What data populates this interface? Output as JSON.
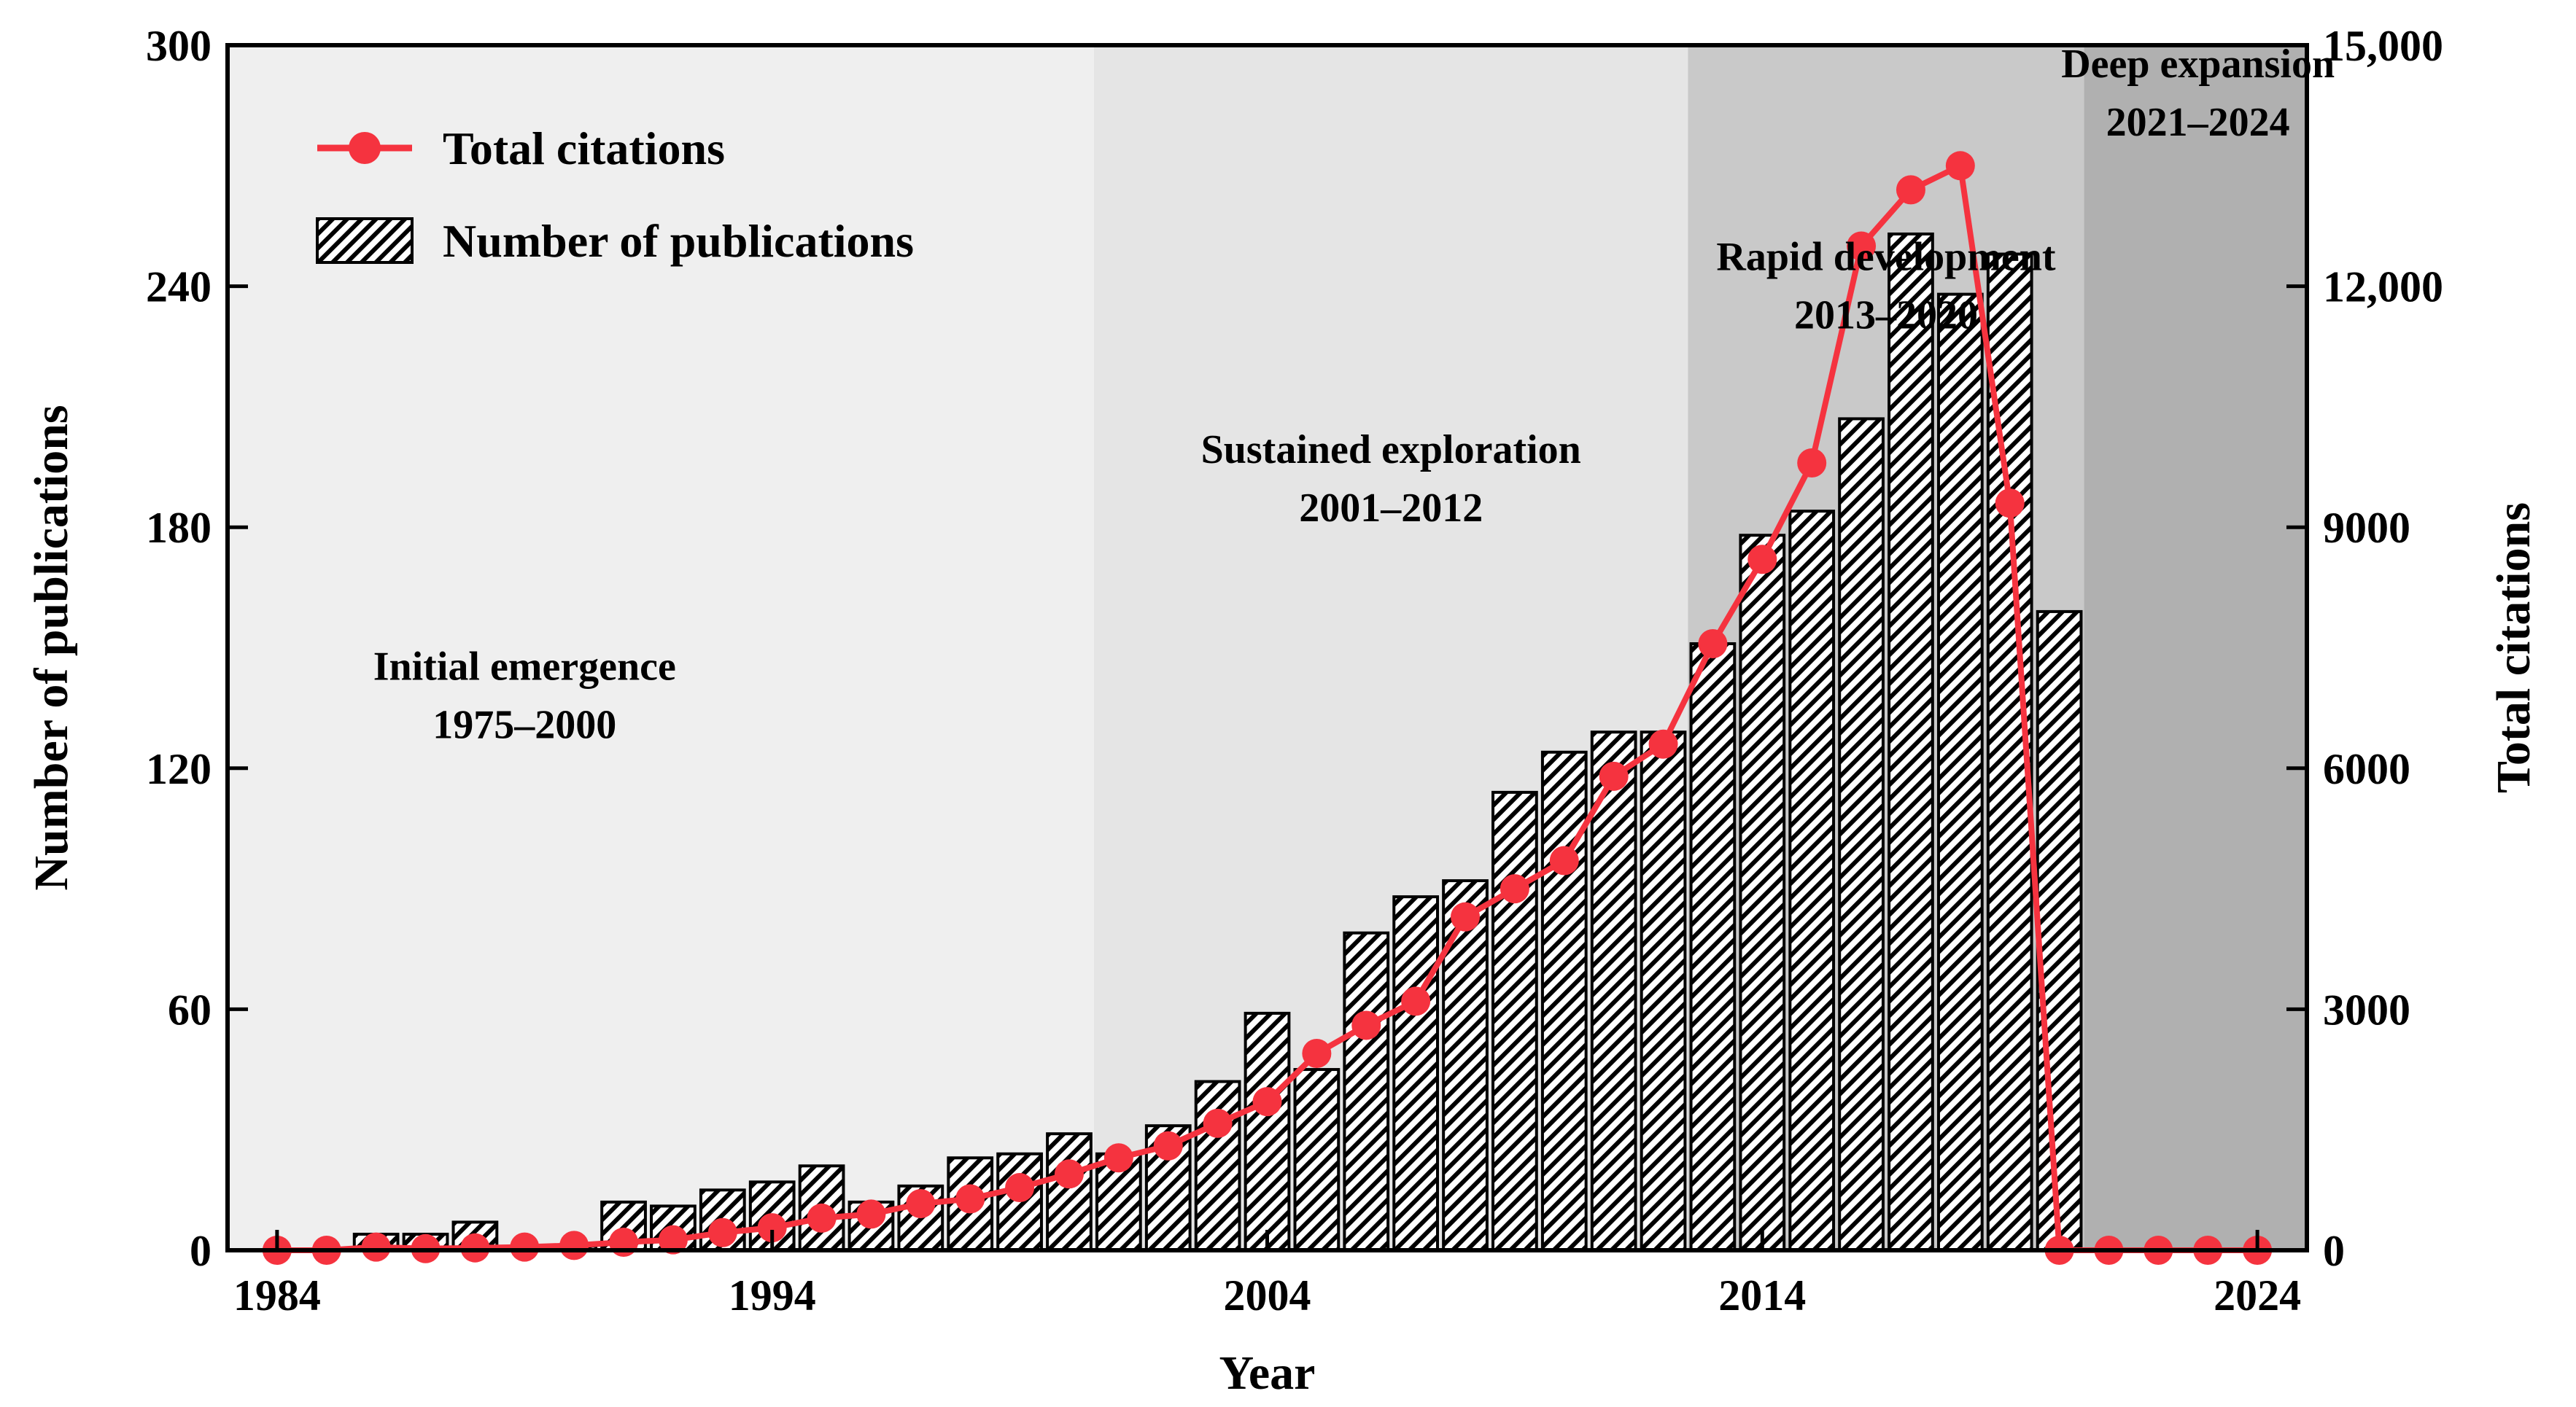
{
  "chart_data": {
    "type": "bar+line",
    "xlabel": "Year",
    "ylabel_left": "Number of publications",
    "ylabel_right": "Total citations",
    "xlim": [
      1983,
      2025
    ],
    "ylim_left": [
      0,
      300
    ],
    "ylim_right": [
      0,
      15000
    ],
    "x_ticks": [
      {
        "value": 1984,
        "label": "1984"
      },
      {
        "value": 1994,
        "label": "1994"
      },
      {
        "value": 2004,
        "label": "2004"
      },
      {
        "value": 2014,
        "label": "2014"
      },
      {
        "value": 2024,
        "label": "2024"
      }
    ],
    "y_ticks_left": [
      {
        "value": 0,
        "label": "0"
      },
      {
        "value": 60,
        "label": "60"
      },
      {
        "value": 120,
        "label": "120"
      },
      {
        "value": 180,
        "label": "180"
      },
      {
        "value": 240,
        "label": "240"
      },
      {
        "value": 300,
        "label": "300"
      }
    ],
    "y_ticks_right": [
      {
        "value": 0,
        "label": "0"
      },
      {
        "value": 3000,
        "label": "3000"
      },
      {
        "value": 6000,
        "label": "6000"
      },
      {
        "value": 9000,
        "label": "9000"
      },
      {
        "value": 12000,
        "label": "12,000"
      },
      {
        "value": 15000,
        "label": "15,000"
      }
    ],
    "legend": {
      "placement": "top-left",
      "entries": [
        "Total citations",
        "Number of publications"
      ]
    },
    "phases": [
      {
        "title": "Initial emergence",
        "range": "1975–2000",
        "x_start": 1983,
        "x_end": 2000.5,
        "color": "#efefef",
        "label_x": 1989,
        "label_y_left": 142
      },
      {
        "title": "Sustained exploration",
        "range": "2001–2012",
        "x_start": 2000.5,
        "x_end": 2012.5,
        "color": "#e5e5e5",
        "label_x": 2006.5,
        "label_y_left": 196
      },
      {
        "title": "Rapid development",
        "range": "2013–2020",
        "x_start": 2012.5,
        "x_end": 2020.5,
        "color": "#c9c9c9",
        "label_x": 2016.5,
        "label_y_left": 244
      },
      {
        "title": "Deep expansion",
        "range": "2021–2024",
        "x_start": 2020.5,
        "x_end": 2025,
        "color": "#b0b0b0",
        "label_x": 2022.8,
        "label_y_left": 292
      }
    ],
    "series": [
      {
        "name": "Number of publications",
        "type": "bar",
        "axis": "left",
        "x": [
          1986,
          1987,
          1988,
          1989,
          1990,
          1991,
          1992,
          1993,
          1994,
          1995,
          1996,
          1997,
          1998,
          1999,
          2000,
          2001,
          2002,
          2003,
          2004,
          2005,
          2006,
          2007,
          2008,
          2009,
          2010,
          2011,
          2012,
          2013,
          2014,
          2015,
          2016,
          2017,
          2018,
          2019,
          2020,
          2021,
          2022,
          2023,
          2024
        ],
        "values": [
          4,
          4,
          7,
          1,
          1,
          12,
          11,
          15,
          17,
          21,
          12,
          16,
          23,
          24,
          29,
          24,
          31,
          42,
          59,
          45,
          79,
          88,
          92,
          114,
          124,
          129,
          129,
          151,
          178,
          184,
          207,
          253,
          238,
          248,
          159,
          0,
          0,
          0,
          0
        ]
      },
      {
        "name": "Total citations",
        "type": "line",
        "axis": "right",
        "color": "#f5333f",
        "x": [
          1984,
          1985,
          1986,
          1987,
          1988,
          1989,
          1990,
          1991,
          1992,
          1993,
          1994,
          1995,
          1996,
          1997,
          1998,
          1999,
          2000,
          2001,
          2002,
          2003,
          2004,
          2005,
          2006,
          2007,
          2008,
          2009,
          2010,
          2011,
          2012,
          2013,
          2014,
          2015,
          2016,
          2017,
          2018,
          2019,
          2020,
          2021,
          2022,
          2023,
          2024
        ],
        "values": [
          0,
          0,
          40,
          20,
          30,
          40,
          60,
          100,
          130,
          220,
          280,
          400,
          450,
          580,
          640,
          780,
          950,
          1150,
          1300,
          1580,
          1850,
          2450,
          2800,
          3100,
          4150,
          4500,
          4850,
          5900,
          6300,
          7550,
          8600,
          9800,
          12500,
          13200,
          13500,
          9300,
          0,
          0,
          0,
          0,
          0
        ]
      }
    ]
  }
}
